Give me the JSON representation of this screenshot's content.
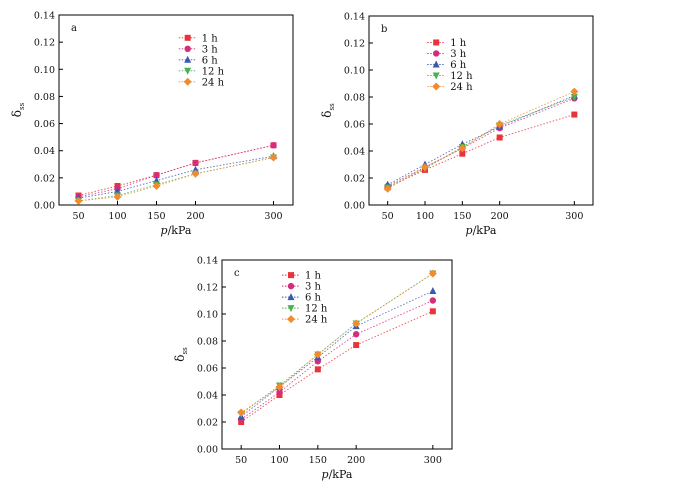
{
  "chart_data": [
    {
      "type": "scatter",
      "panel_label": "a",
      "xlabel_var": "p",
      "xlabel_unit": "/kPa",
      "ylabel": "δ",
      "ylabel_sub": "ss",
      "x": [
        50,
        100,
        150,
        200,
        300
      ],
      "x_ticks": [
        "50",
        "100",
        "150",
        "200",
        "300"
      ],
      "xlim": [
        25,
        325
      ],
      "ylim": [
        0,
        0.14
      ],
      "y_ticks": [
        "0.00",
        "0.02",
        "0.04",
        "0.06",
        "0.08",
        "0.10",
        "0.12",
        "0.14"
      ],
      "grid": false,
      "legend": "top-center",
      "series": [
        {
          "name": "1 h",
          "marker": "square",
          "color": "#e8333a",
          "values": [
            0.007,
            0.014,
            0.022,
            0.031,
            0.044
          ]
        },
        {
          "name": "3 h",
          "marker": "circle",
          "color": "#d62d7a",
          "values": [
            0.006,
            0.012,
            0.022,
            0.031,
            0.044
          ]
        },
        {
          "name": "6 h",
          "marker": "triangle-up",
          "color": "#3a57b4",
          "values": [
            0.005,
            0.01,
            0.018,
            0.026,
            0.036
          ]
        },
        {
          "name": "12 h",
          "marker": "triangle-down",
          "color": "#4caf50",
          "values": [
            0.003,
            0.007,
            0.015,
            0.023,
            0.035
          ]
        },
        {
          "name": "24 h",
          "marker": "diamond",
          "color": "#f08c2e",
          "values": [
            0.003,
            0.006,
            0.014,
            0.023,
            0.035
          ]
        }
      ]
    },
    {
      "type": "scatter",
      "panel_label": "b",
      "xlabel_var": "p",
      "xlabel_unit": "/kPa",
      "ylabel": "δ",
      "ylabel_sub": "ss",
      "x": [
        50,
        100,
        150,
        200,
        300
      ],
      "x_ticks": [
        "50",
        "100",
        "150",
        "200",
        "300"
      ],
      "xlim": [
        25,
        325
      ],
      "ylim": [
        0,
        0.14
      ],
      "y_ticks": [
        "0.00",
        "0.02",
        "0.04",
        "0.06",
        "0.08",
        "0.10",
        "0.12",
        "0.14"
      ],
      "grid": false,
      "legend": "top-left",
      "series": [
        {
          "name": "1 h",
          "marker": "square",
          "color": "#e8333a",
          "values": [
            0.013,
            0.026,
            0.038,
            0.05,
            0.067
          ]
        },
        {
          "name": "3 h",
          "marker": "circle",
          "color": "#d62d7a",
          "values": [
            0.014,
            0.028,
            0.042,
            0.057,
            0.079
          ]
        },
        {
          "name": "6 h",
          "marker": "triangle-up",
          "color": "#3a57b4",
          "values": [
            0.015,
            0.03,
            0.045,
            0.058,
            0.081
          ]
        },
        {
          "name": "12 h",
          "marker": "triangle-down",
          "color": "#4caf50",
          "values": [
            0.013,
            0.027,
            0.043,
            0.059,
            0.08
          ]
        },
        {
          "name": "24 h",
          "marker": "diamond",
          "color": "#f08c2e",
          "values": [
            0.012,
            0.028,
            0.042,
            0.06,
            0.084
          ]
        }
      ]
    },
    {
      "type": "scatter",
      "panel_label": "c",
      "xlabel_var": "p",
      "xlabel_unit": "/kPa",
      "ylabel": "δ",
      "ylabel_sub": "ss",
      "x": [
        50,
        100,
        150,
        200,
        300
      ],
      "x_ticks": [
        "50",
        "100",
        "150",
        "200",
        "300"
      ],
      "xlim": [
        25,
        325
      ],
      "ylim": [
        0,
        0.14
      ],
      "y_ticks": [
        "0.00",
        "0.02",
        "0.04",
        "0.06",
        "0.08",
        "0.10",
        "0.12",
        "0.14"
      ],
      "grid": false,
      "legend": "top-left",
      "series": [
        {
          "name": "1 h",
          "marker": "square",
          "color": "#e8333a",
          "values": [
            0.02,
            0.04,
            0.059,
            0.077,
            0.102
          ]
        },
        {
          "name": "3 h",
          "marker": "circle",
          "color": "#d62d7a",
          "values": [
            0.022,
            0.042,
            0.065,
            0.085,
            0.11
          ]
        },
        {
          "name": "6 h",
          "marker": "triangle-up",
          "color": "#3a57b4",
          "values": [
            0.024,
            0.046,
            0.068,
            0.091,
            0.117
          ]
        },
        {
          "name": "12 h",
          "marker": "triangle-down",
          "color": "#4caf50",
          "values": [
            0.026,
            0.047,
            0.07,
            0.093,
            0.13
          ]
        },
        {
          "name": "24 h",
          "marker": "diamond",
          "color": "#f08c2e",
          "values": [
            0.027,
            0.046,
            0.07,
            0.093,
            0.13
          ]
        }
      ]
    }
  ]
}
